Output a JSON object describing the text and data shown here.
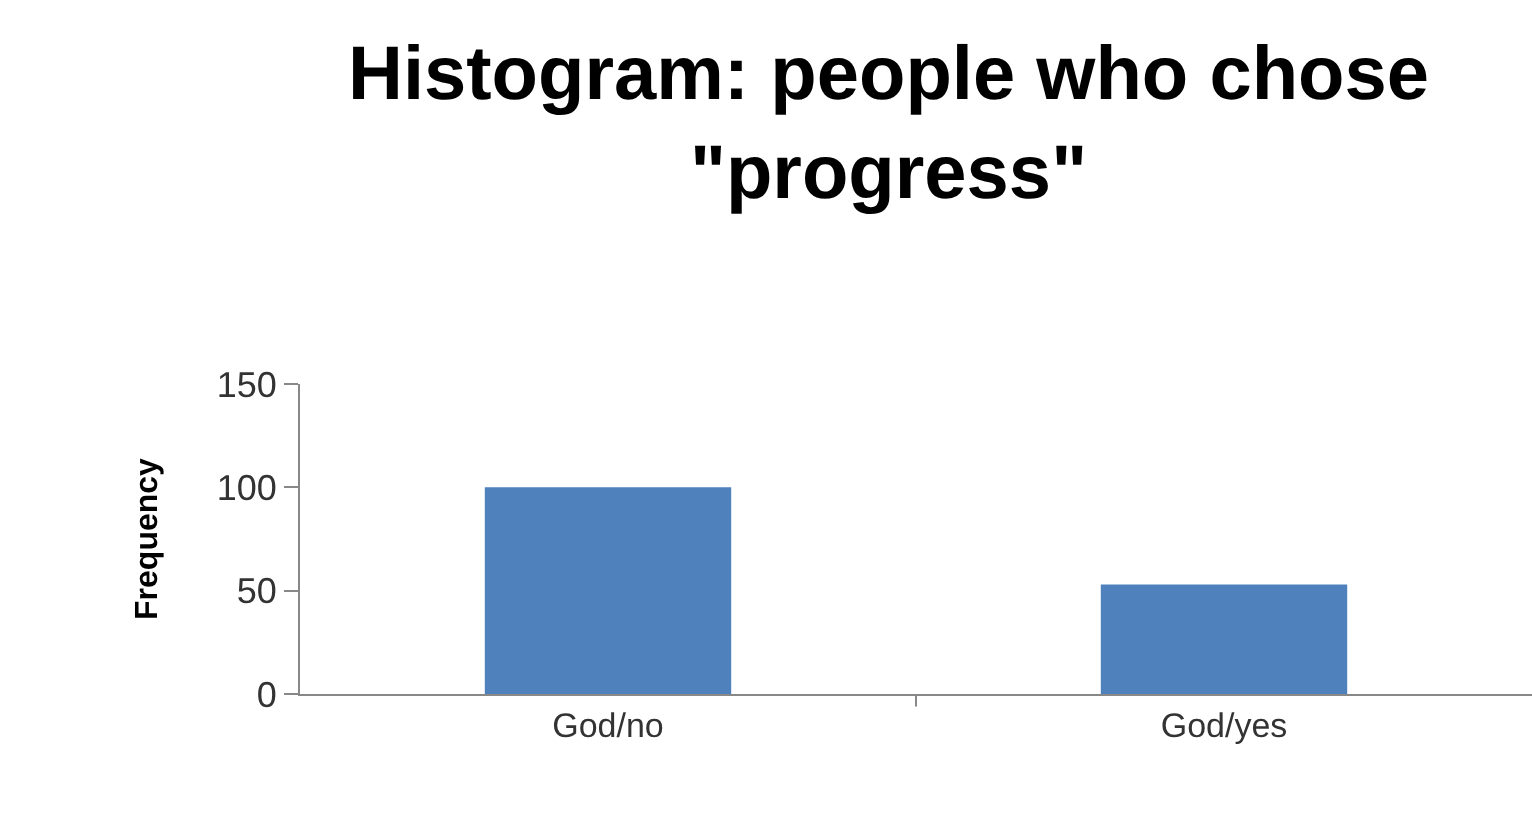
{
  "chart_data": {
    "type": "bar",
    "title": "Histogram: people who chose \"progress\"",
    "ylabel": "Frequency",
    "categories": [
      "God/no",
      "God/yes"
    ],
    "values": [
      100,
      53
    ],
    "color": "#4f81bd",
    "ylim": [
      0,
      150
    ],
    "yticks": [
      0,
      50,
      100,
      150
    ],
    "grid": false,
    "legend": false
  }
}
